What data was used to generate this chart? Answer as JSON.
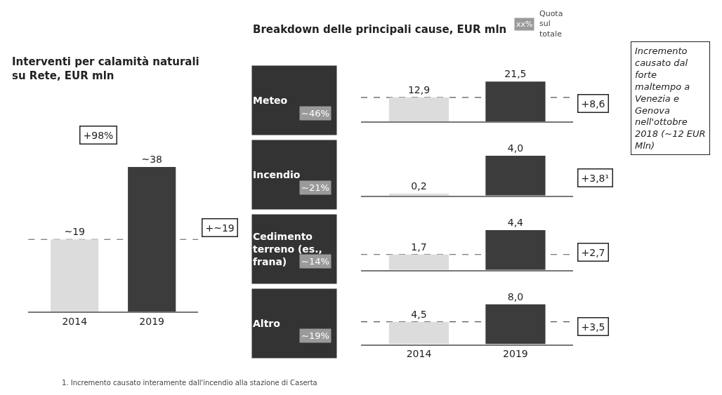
{
  "chart_data": [
    {
      "type": "bar",
      "title": "Interventi per calamità naturali su Rete, EUR mln",
      "categories": [
        "2014",
        "2019"
      ],
      "values": [
        19,
        38
      ],
      "value_labels": [
        "~19",
        "~38"
      ],
      "colors": [
        "#dcdcdc",
        "#3c3c3c"
      ],
      "tick_labels": "x",
      "annotations": [
        "+98%",
        "+~19"
      ],
      "ref_lines": [
        {
          "axis": "y",
          "value": 19,
          "line_style": "dashed",
          "color": "#555555"
        }
      ]
    },
    {
      "type": "bar",
      "title": "Breakdown delle principali cause, EUR mln",
      "ylabel": "Meteo",
      "categories": [
        "2014",
        "2019"
      ],
      "values": [
        12.9,
        21.5
      ],
      "value_labels": [
        "12,9",
        "21,5"
      ],
      "colors": [
        "#dcdcdc",
        "#3c3c3c"
      ],
      "tick_labels": false,
      "annotations": [
        "~46%",
        "+8,6",
        "xx%",
        "Quota sul totale",
        "Incremento causato dal forte maltempo a Venezia e Genova nell'ottobre 2018 (~12 EUR Mln)"
      ],
      "ref_lines": [
        {
          "axis": "y",
          "value": 12.9,
          "line_style": "dashed",
          "color": "#555555"
        }
      ]
    },
    {
      "type": "bar",
      "ylabel": "Incendio",
      "categories": [
        "2014",
        "2019"
      ],
      "values": [
        0.2,
        4.0
      ],
      "value_labels": [
        "0,2",
        "4,0"
      ],
      "colors": [
        "#dcdcdc",
        "#3c3c3c"
      ],
      "tick_labels": false,
      "annotations": [
        "~21%",
        "+3,8¹"
      ]
    },
    {
      "type": "bar",
      "ylabel": "Cedimento terreno (es., frana)",
      "categories": [
        "2014",
        "2019"
      ],
      "values": [
        1.7,
        4.4
      ],
      "value_labels": [
        "1,7",
        "4,4"
      ],
      "colors": [
        "#dcdcdc",
        "#3c3c3c"
      ],
      "tick_labels": false,
      "annotations": [
        "~14%",
        "+2,7"
      ],
      "ref_lines": [
        {
          "axis": "y",
          "value": 1.7,
          "line_style": "dashed",
          "color": "#555555"
        }
      ]
    },
    {
      "type": "bar",
      "ylabel": "Altro",
      "categories": [
        "2014",
        "2019"
      ],
      "values": [
        4.5,
        8.0
      ],
      "value_labels": [
        "4,5",
        "8,0"
      ],
      "colors": [
        "#dcdcdc",
        "#3c3c3c"
      ],
      "tick_labels": "x",
      "annotations": [
        "~19%",
        "+3,5",
        "1. Incremento causato interamente dall'incendio alla stazione di Caserta"
      ],
      "ref_lines": [
        {
          "axis": "y",
          "value": 4.5,
          "line_style": "dashed",
          "color": "#555555"
        }
      ]
    }
  ]
}
